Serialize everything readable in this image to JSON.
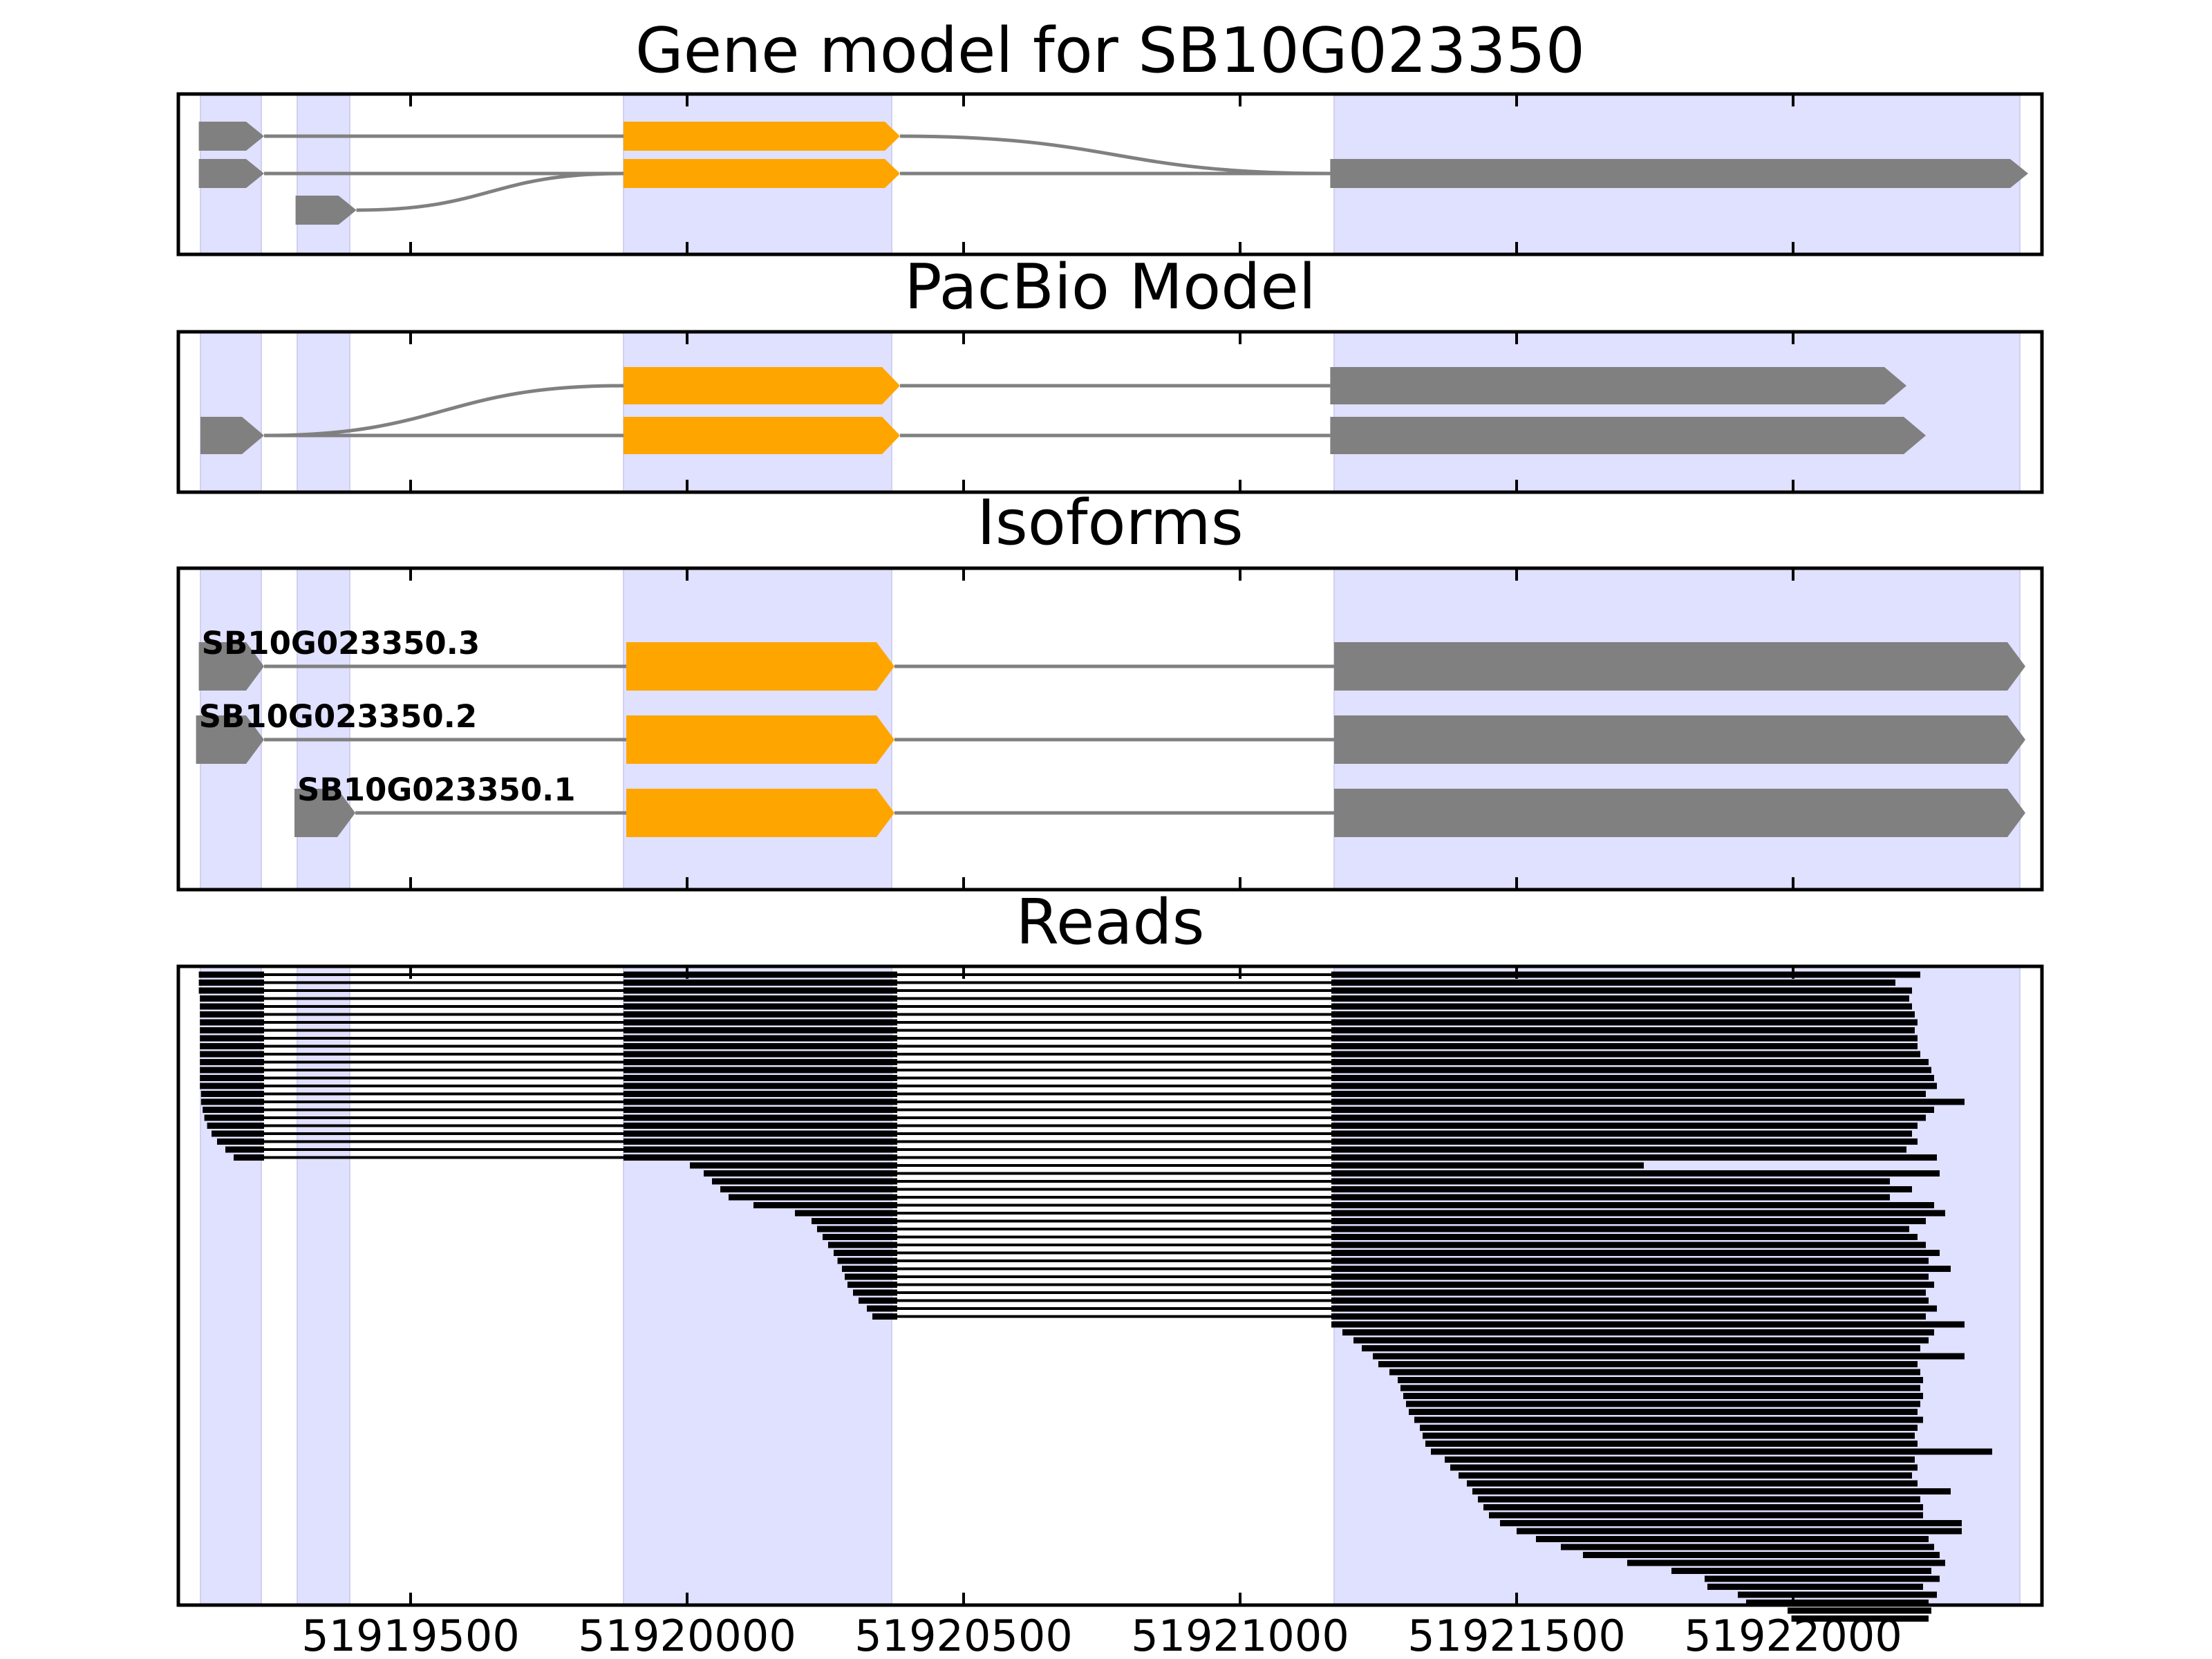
{
  "chart_data": {
    "type": "genome-track",
    "xlim": [
      51919080,
      51922450
    ],
    "xticks": [
      51919500,
      51920000,
      51920500,
      51921000,
      51921500,
      51922000
    ],
    "xtick_labels": [
      "51919500",
      "51920000",
      "51920500",
      "51921000",
      "51921500",
      "51922000"
    ],
    "colors": {
      "utr": "#808080",
      "cds": "#ffa500",
      "highlight": "#e0e0ff",
      "intron_line": "#808080",
      "read": "#000000"
    },
    "highlight_regions": [
      [
        51919120,
        51919230
      ],
      [
        51919295,
        51919390
      ],
      [
        51919885,
        51920370
      ],
      [
        51921170,
        51922410
      ]
    ],
    "panels": [
      {
        "title": "Gene model for SB10G023350",
        "transcripts": [
          {
            "exons": [
              [
                51919117,
                51919235
              ],
              [
                51919885,
                51920385
              ],
              [
                51921163,
                51922425
              ]
            ],
            "cds_exon_index": [
              1
            ]
          },
          {
            "exons": [
              [
                51919117,
                51919235
              ],
              [
                51919885,
                51920385
              ],
              [
                51921163,
                51922425
              ]
            ],
            "cds_exon_index": [
              1
            ]
          },
          {
            "exons": [
              [
                51919292,
                51919402
              ]
            ],
            "cds_exon_index": [],
            "joins_exon": 1
          }
        ]
      },
      {
        "title": "PacBio Model",
        "transcripts": [
          {
            "exons": [
              [
                51919885,
                51920385
              ],
              [
                51921163,
                51922205
              ]
            ],
            "cds_exon_index": [
              0
            ]
          },
          {
            "exons": [
              [
                51919120,
                51919235
              ],
              [
                51919885,
                51920385
              ],
              [
                51921163,
                51922240
              ]
            ],
            "cds_exon_index": [
              1
            ]
          }
        ]
      },
      {
        "title": "Isoforms",
        "isoforms": [
          {
            "label": "SB10G023350.3",
            "exons": [
              [
                51919117,
                51919235
              ],
              [
                51919890,
                51920375
              ],
              [
                51921170,
                51922420
              ]
            ],
            "cds_exon_index": [
              1
            ]
          },
          {
            "label": "SB10G023350.2",
            "exons": [
              [
                51919112,
                51919235
              ],
              [
                51919890,
                51920375
              ],
              [
                51921170,
                51922420
              ]
            ],
            "cds_exon_index": [
              1
            ]
          },
          {
            "label": "SB10G023350.1",
            "exons": [
              [
                51919290,
                51919400
              ],
              [
                51919890,
                51920375
              ],
              [
                51921170,
                51922420
              ]
            ],
            "cds_exon_index": [
              1
            ]
          }
        ]
      },
      {
        "title": "Reads",
        "reads": {
          "exon1_end": 51919235,
          "exon2": [
            51919885,
            51920380
          ],
          "exon3_start": 51921165,
          "full_length_starts": [
            51919117,
            51919117,
            51919117,
            51919119,
            51919119,
            51919119,
            51919119,
            51919119,
            51919119,
            51919119,
            51919119,
            51919119,
            51919119,
            51919119,
            51919119,
            51919121,
            51919121,
            51919124,
            51919127,
            51919132,
            51919140,
            51919150,
            51919165,
            51919180
          ],
          "full_length_ends": [
            51922230,
            51922185,
            51922215,
            51922210,
            51922215,
            51922220,
            51922225,
            51922220,
            51922225,
            51922225,
            51922230,
            51922245,
            51922250,
            51922255,
            51922260,
            51922240,
            51922310,
            51922255,
            51922240,
            51922225,
            51922215,
            51922225,
            51922205,
            51922260
          ],
          "exon2_start_reads": [
            51920005,
            51920030,
            51920045,
            51920060,
            51920075,
            51920120,
            51920195,
            51920225,
            51920235,
            51920245,
            51920255,
            51920265,
            51920272,
            51920280,
            51920285,
            51920290,
            51920300,
            51920310,
            51920325,
            51920335
          ],
          "exon2_start_ends": [
            51921730,
            51922265,
            51922175,
            51922215,
            51922175,
            51922255,
            51922275,
            51922240,
            51922210,
            51922225,
            51922240,
            51922265,
            51922245,
            51922285,
            51922245,
            51922255,
            51922240,
            51922245,
            51922260,
            51922240
          ],
          "exon3_only_starts": [
            51921165,
            51921185,
            51921205,
            51921220,
            51921240,
            51921250,
            51921270,
            51921285,
            51921290,
            51921295,
            51921300,
            51921305,
            51921315,
            51921325,
            51921330,
            51921335,
            51921345,
            51921370,
            51921380,
            51921395,
            51921410,
            51921420,
            51921430,
            51921440,
            51921450,
            51921470,
            51921500,
            51921535,
            51921580,
            51921620,
            51921700,
            51921780,
            51921840,
            51921845,
            51921900,
            51921915,
            51921990,
            51921997
          ],
          "exon3_only_ends": [
            51922310,
            51922255,
            51922245,
            51922230,
            51922310,
            51922225,
            51922230,
            51922235,
            51922230,
            51922235,
            51922230,
            51922225,
            51922235,
            51922225,
            51922220,
            51922225,
            51922360,
            51922220,
            51922225,
            51922215,
            51922225,
            51922285,
            51922230,
            51922235,
            51922235,
            51922305,
            51922305,
            51922245,
            51922255,
            51922265,
            51922275,
            51922250,
            51922265,
            51922235,
            51922260,
            51922245,
            51922250,
            51922245
          ]
        }
      }
    ]
  }
}
